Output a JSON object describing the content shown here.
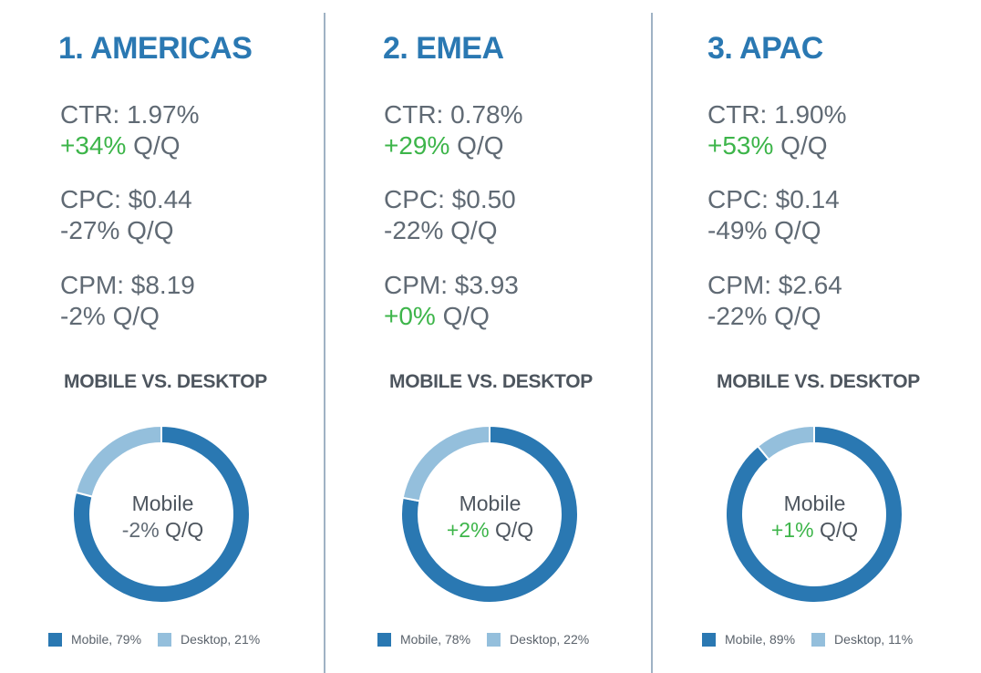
{
  "colors": {
    "title": "#2a78b2",
    "positive": "#3db54a",
    "text": "#606a74",
    "mobile": "#2a78b2",
    "desktop": "#94bfdc"
  },
  "regions": [
    {
      "title": "1. AMERICAS",
      "metrics": [
        {
          "label": "CTR: 1.97%",
          "change": "+34%",
          "suffix": " Q/Q",
          "trend": "pos"
        },
        {
          "label": "CPC: $0.44",
          "change": "-27%",
          "suffix": " Q/Q",
          "trend": "neg"
        },
        {
          "label": "CPM: $8.19",
          "change": "-2%",
          "suffix": " Q/Q",
          "trend": "neg"
        }
      ],
      "subhead": "MOBILE VS. DESKTOP",
      "center": {
        "label": "Mobile",
        "change": "-2%",
        "suffix": " Q/Q",
        "trend": "neg"
      },
      "legend": [
        {
          "label": "Mobile, 79%"
        },
        {
          "label": "Desktop, 21%"
        }
      ]
    },
    {
      "title": "2. EMEA",
      "metrics": [
        {
          "label": "CTR: 0.78%",
          "change": "+29%",
          "suffix": " Q/Q",
          "trend": "pos"
        },
        {
          "label": "CPC: $0.50",
          "change": "-22%",
          "suffix": " Q/Q",
          "trend": "neg"
        },
        {
          "label": "CPM: $3.93",
          "change": "+0%",
          "suffix": " Q/Q",
          "trend": "pos"
        }
      ],
      "subhead": "MOBILE VS. DESKTOP",
      "center": {
        "label": "Mobile",
        "change": "+2%",
        "suffix": " Q/Q",
        "trend": "pos"
      },
      "legend": [
        {
          "label": "Mobile, 78%"
        },
        {
          "label": "Desktop, 22%"
        }
      ]
    },
    {
      "title": "3. APAC",
      "metrics": [
        {
          "label": "CTR: 1.90%",
          "change": "+53%",
          "suffix": " Q/Q",
          "trend": "pos"
        },
        {
          "label": "CPC: $0.14",
          "change": "-49%",
          "suffix": " Q/Q",
          "trend": "neg"
        },
        {
          "label": "CPM: $2.64",
          "change": "-22%",
          "suffix": " Q/Q",
          "trend": "neg"
        }
      ],
      "subhead": "MOBILE VS. DESKTOP",
      "center": {
        "label": "Mobile",
        "change": "+1%",
        "suffix": " Q/Q",
        "trend": "pos"
      },
      "legend": [
        {
          "label": "Mobile, 89%"
        },
        {
          "label": "Desktop, 11%"
        }
      ]
    }
  ],
  "chart_data": [
    {
      "type": "pie",
      "title": "MOBILE VS. DESKTOP",
      "categories": [
        "Mobile",
        "Desktop"
      ],
      "values": [
        79,
        21
      ]
    },
    {
      "type": "pie",
      "title": "MOBILE VS. DESKTOP",
      "categories": [
        "Mobile",
        "Desktop"
      ],
      "values": [
        78,
        22
      ]
    },
    {
      "type": "pie",
      "title": "MOBILE VS. DESKTOP",
      "categories": [
        "Mobile",
        "Desktop"
      ],
      "values": [
        89,
        11
      ]
    }
  ]
}
